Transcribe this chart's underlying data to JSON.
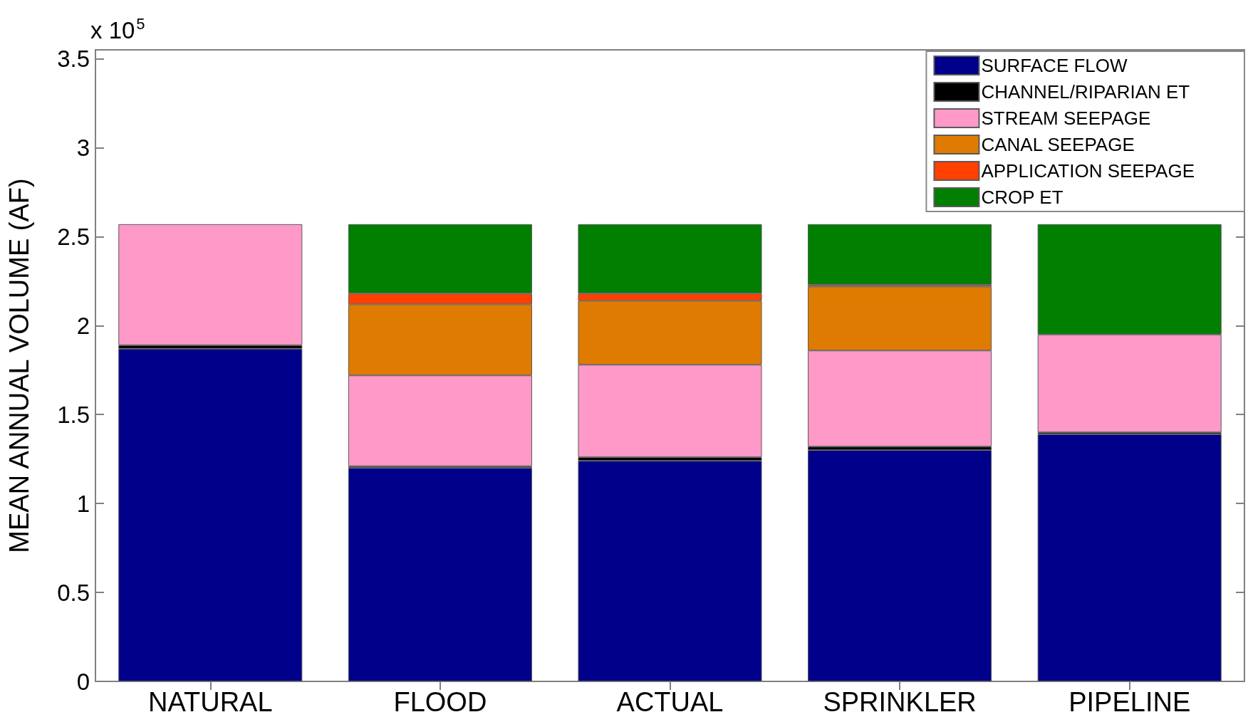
{
  "chart_data": {
    "type": "bar",
    "stacked": true,
    "categories": [
      "NATURAL",
      "FLOOD",
      "ACTUAL",
      "SPRINKLER",
      "PIPELINE"
    ],
    "series": [
      {
        "name": "SURFACE FLOW",
        "color": "#00008b",
        "values": [
          1.87,
          1.2,
          1.24,
          1.3,
          1.39
        ]
      },
      {
        "name": "CHANNEL/RIPARIAN ET",
        "color": "#000000",
        "values": [
          0.02,
          0.01,
          0.02,
          0.02,
          0.01
        ]
      },
      {
        "name": "STREAM SEEPAGE",
        "color": "#ff99c8",
        "values": [
          0.68,
          0.51,
          0.52,
          0.54,
          0.55
        ]
      },
      {
        "name": "CANAL SEEPAGE",
        "color": "#df7b00",
        "values": [
          0,
          0.4,
          0.36,
          0.36,
          0
        ]
      },
      {
        "name": "APPLICATION SEEPAGE",
        "color": "#ff4000",
        "values": [
          0,
          0.06,
          0.04,
          0.01,
          0
        ]
      },
      {
        "name": "CROP ET",
        "color": "#007f00",
        "values": [
          0,
          0.39,
          0.39,
          0.34,
          0.62
        ]
      }
    ],
    "ylabel": "MEAN ANNUAL VOLUME (AF)",
    "ylim": [
      0,
      3.55
    ],
    "yticks": [
      0,
      0.5,
      1,
      1.5,
      2,
      2.5,
      3,
      3.5
    ],
    "annotations": [
      "x 10$^{5}$"
    ],
    "legend": "top right",
    "grid": false
  }
}
